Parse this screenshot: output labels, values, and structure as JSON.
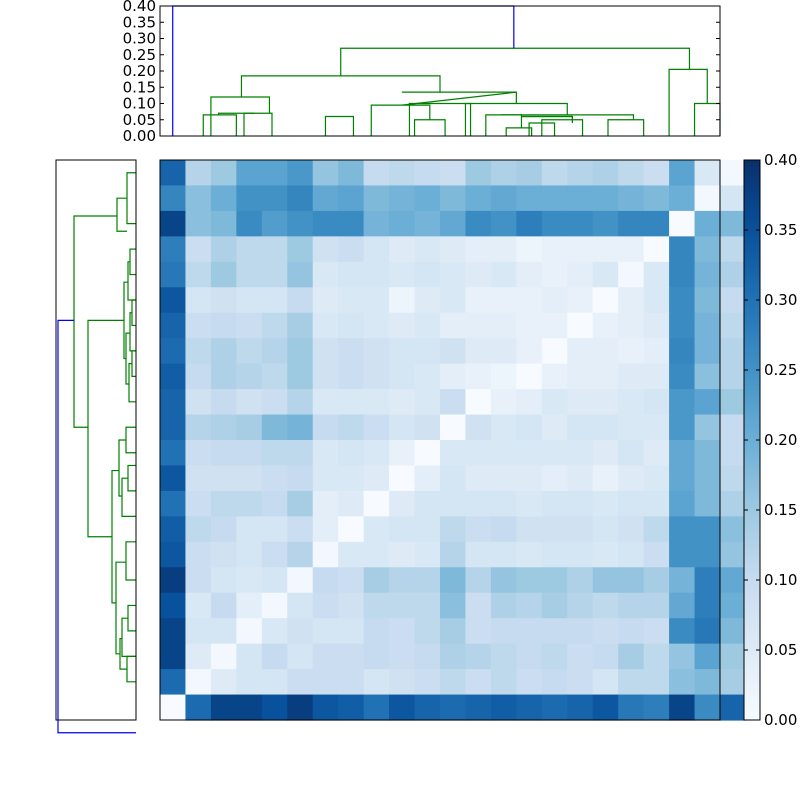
{
  "chart_data": [
    {
      "type": "dendrogram",
      "orientation": "top",
      "ylim": [
        0,
        0.4
      ],
      "y_ticks": [
        "0.00",
        "0.05",
        "0.10",
        "0.15",
        "0.20",
        "0.25",
        "0.30",
        "0.35",
        "0.40"
      ],
      "colors": {
        "within_cluster": "#008000",
        "root_link": "#0000ff"
      }
    },
    {
      "type": "dendrogram",
      "orientation": "left",
      "colors": {
        "within_cluster": "#008000",
        "root_link": "#0000ff"
      }
    },
    {
      "type": "heatmap",
      "colormap": "Blues",
      "vmin": 0,
      "vmax": 0.4,
      "colorbar_ticks": [
        "0.00",
        "0.05",
        "0.10",
        "0.15",
        "0.20",
        "0.25",
        "0.30",
        "0.35",
        "0.40"
      ],
      "values": [
        [
          0.32,
          0.12,
          0.15,
          0.22,
          0.22,
          0.24,
          0.16,
          0.18,
          0.1,
          0.11,
          0.1,
          0.09,
          0.15,
          0.13,
          0.14,
          0.11,
          0.12,
          0.13,
          0.11,
          0.09,
          0.22,
          0.06,
          0.01
        ],
        [
          0.27,
          0.17,
          0.2,
          0.25,
          0.25,
          0.27,
          0.21,
          0.22,
          0.18,
          0.19,
          0.2,
          0.18,
          0.2,
          0.21,
          0.2,
          0.2,
          0.2,
          0.2,
          0.19,
          0.18,
          0.2,
          0.01,
          0.07
        ],
        [
          0.37,
          0.17,
          0.18,
          0.26,
          0.23,
          0.25,
          0.26,
          0.26,
          0.19,
          0.2,
          0.19,
          0.21,
          0.26,
          0.25,
          0.28,
          0.26,
          0.26,
          0.25,
          0.27,
          0.27,
          0.0,
          0.2,
          0.18
        ],
        [
          0.28,
          0.09,
          0.13,
          0.11,
          0.11,
          0.15,
          0.08,
          0.09,
          0.07,
          0.05,
          0.06,
          0.05,
          0.04,
          0.04,
          0.02,
          0.03,
          0.03,
          0.03,
          0.03,
          0.0,
          0.27,
          0.18,
          0.11
        ],
        [
          0.29,
          0.11,
          0.15,
          0.11,
          0.11,
          0.16,
          0.06,
          0.07,
          0.07,
          0.06,
          0.07,
          0.06,
          0.05,
          0.06,
          0.04,
          0.03,
          0.04,
          0.06,
          0.01,
          0.06,
          0.27,
          0.19,
          0.13
        ],
        [
          0.34,
          0.07,
          0.08,
          0.07,
          0.07,
          0.1,
          0.05,
          0.06,
          0.06,
          0.02,
          0.05,
          0.06,
          0.03,
          0.03,
          0.03,
          0.04,
          0.03,
          0.0,
          0.04,
          0.06,
          0.26,
          0.18,
          0.1
        ],
        [
          0.32,
          0.09,
          0.1,
          0.09,
          0.11,
          0.14,
          0.06,
          0.07,
          0.06,
          0.05,
          0.06,
          0.04,
          0.04,
          0.04,
          0.03,
          0.03,
          0.0,
          0.03,
          0.04,
          0.05,
          0.26,
          0.19,
          0.11
        ],
        [
          0.31,
          0.11,
          0.13,
          0.11,
          0.12,
          0.15,
          0.08,
          0.09,
          0.08,
          0.07,
          0.07,
          0.08,
          0.05,
          0.05,
          0.03,
          0.0,
          0.04,
          0.04,
          0.03,
          0.04,
          0.27,
          0.19,
          0.12
        ],
        [
          0.33,
          0.1,
          0.13,
          0.12,
          0.11,
          0.15,
          0.08,
          0.09,
          0.08,
          0.07,
          0.06,
          0.04,
          0.03,
          0.02,
          0.0,
          0.03,
          0.04,
          0.04,
          0.05,
          0.05,
          0.26,
          0.17,
          0.12
        ],
        [
          0.32,
          0.08,
          0.1,
          0.08,
          0.09,
          0.12,
          0.06,
          0.06,
          0.06,
          0.05,
          0.06,
          0.09,
          0.0,
          0.03,
          0.04,
          0.06,
          0.05,
          0.05,
          0.06,
          0.07,
          0.24,
          0.22,
          0.15
        ],
        [
          0.32,
          0.12,
          0.13,
          0.14,
          0.18,
          0.19,
          0.1,
          0.11,
          0.09,
          0.07,
          0.08,
          0.0,
          0.08,
          0.06,
          0.07,
          0.05,
          0.07,
          0.07,
          0.06,
          0.06,
          0.24,
          0.16,
          0.1
        ],
        [
          0.3,
          0.09,
          0.1,
          0.1,
          0.11,
          0.11,
          0.06,
          0.07,
          0.06,
          0.03,
          0.0,
          0.06,
          0.06,
          0.06,
          0.06,
          0.06,
          0.06,
          0.05,
          0.07,
          0.05,
          0.21,
          0.18,
          0.1
        ],
        [
          0.34,
          0.08,
          0.08,
          0.08,
          0.09,
          0.1,
          0.06,
          0.06,
          0.05,
          0.0,
          0.04,
          0.07,
          0.05,
          0.05,
          0.05,
          0.04,
          0.05,
          0.03,
          0.05,
          0.06,
          0.21,
          0.18,
          0.11
        ],
        [
          0.3,
          0.09,
          0.11,
          0.11,
          0.1,
          0.14,
          0.04,
          0.05,
          0.0,
          0.05,
          0.07,
          0.07,
          0.07,
          0.07,
          0.06,
          0.07,
          0.07,
          0.06,
          0.07,
          0.07,
          0.22,
          0.18,
          0.13
        ],
        [
          0.33,
          0.11,
          0.1,
          0.07,
          0.07,
          0.09,
          0.04,
          0.0,
          0.06,
          0.07,
          0.07,
          0.11,
          0.09,
          0.1,
          0.08,
          0.08,
          0.08,
          0.07,
          0.08,
          0.11,
          0.25,
          0.25,
          0.17
        ],
        [
          0.34,
          0.09,
          0.08,
          0.07,
          0.09,
          0.12,
          0.01,
          0.06,
          0.06,
          0.05,
          0.06,
          0.12,
          0.07,
          0.07,
          0.06,
          0.07,
          0.07,
          0.06,
          0.07,
          0.09,
          0.25,
          0.25,
          0.16
        ],
        [
          0.38,
          0.09,
          0.07,
          0.06,
          0.07,
          0.01,
          0.1,
          0.09,
          0.14,
          0.12,
          0.12,
          0.18,
          0.12,
          0.16,
          0.15,
          0.15,
          0.13,
          0.16,
          0.16,
          0.14,
          0.19,
          0.28,
          0.21
        ],
        [
          0.35,
          0.06,
          0.1,
          0.04,
          0.01,
          0.07,
          0.09,
          0.08,
          0.11,
          0.11,
          0.11,
          0.17,
          0.09,
          0.13,
          0.12,
          0.14,
          0.12,
          0.11,
          0.12,
          0.12,
          0.21,
          0.28,
          0.2
        ],
        [
          0.37,
          0.07,
          0.07,
          0.01,
          0.06,
          0.08,
          0.07,
          0.07,
          0.1,
          0.09,
          0.11,
          0.14,
          0.09,
          0.1,
          0.1,
          0.1,
          0.1,
          0.09,
          0.1,
          0.09,
          0.26,
          0.29,
          0.18
        ],
        [
          0.37,
          0.05,
          0.01,
          0.07,
          0.1,
          0.07,
          0.09,
          0.09,
          0.1,
          0.09,
          0.1,
          0.13,
          0.12,
          0.11,
          0.1,
          0.11,
          0.09,
          0.1,
          0.14,
          0.11,
          0.16,
          0.22,
          0.15
        ],
        [
          0.31,
          0.01,
          0.05,
          0.07,
          0.07,
          0.09,
          0.09,
          0.09,
          0.07,
          0.08,
          0.09,
          0.11,
          0.09,
          0.11,
          0.09,
          0.1,
          0.09,
          0.07,
          0.11,
          0.11,
          0.17,
          0.18,
          0.14
        ],
        [
          0.0,
          0.31,
          0.37,
          0.37,
          0.35,
          0.38,
          0.34,
          0.33,
          0.3,
          0.34,
          0.32,
          0.31,
          0.32,
          0.33,
          0.32,
          0.31,
          0.32,
          0.34,
          0.29,
          0.28,
          0.37,
          0.26,
          0.32
        ]
      ]
    }
  ]
}
